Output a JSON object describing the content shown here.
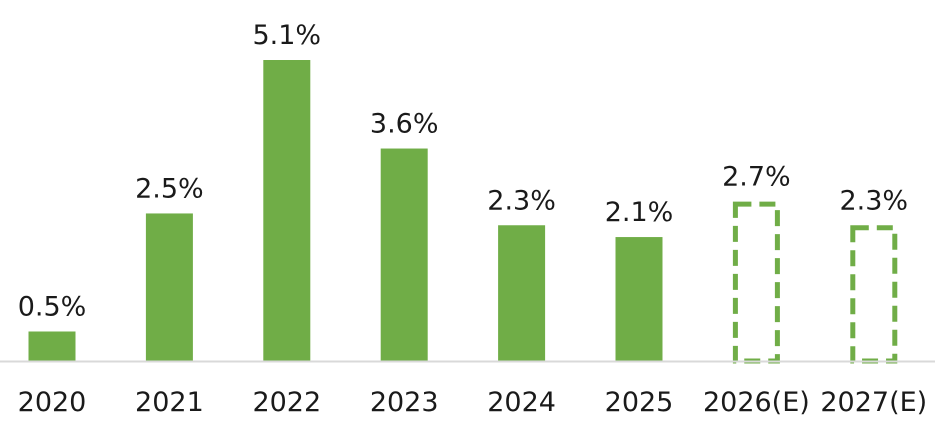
{
  "chart_data": {
    "type": "bar",
    "title": "",
    "xlabel": "",
    "ylabel": "",
    "categories": [
      "2020",
      "2021",
      "2022",
      "2023",
      "2024",
      "2025",
      "2026(E)",
      "2027(E)"
    ],
    "values": [
      0.5,
      2.5,
      5.1,
      3.6,
      2.3,
      2.1,
      2.7,
      2.3
    ],
    "value_labels": [
      "0.5%",
      "2.5%",
      "5.1%",
      "3.6%",
      "2.3%",
      "2.1%",
      "2.7%",
      "2.3%"
    ],
    "estimated": [
      false,
      false,
      false,
      false,
      false,
      false,
      true,
      true
    ],
    "ylim": [
      0,
      5.1
    ],
    "grid": false,
    "legend": "none",
    "colors": {
      "bar": "#70ad47",
      "estimate_outline": "#70ad47",
      "axis": "#d9d9d9",
      "text": "#1a1a1a"
    }
  }
}
